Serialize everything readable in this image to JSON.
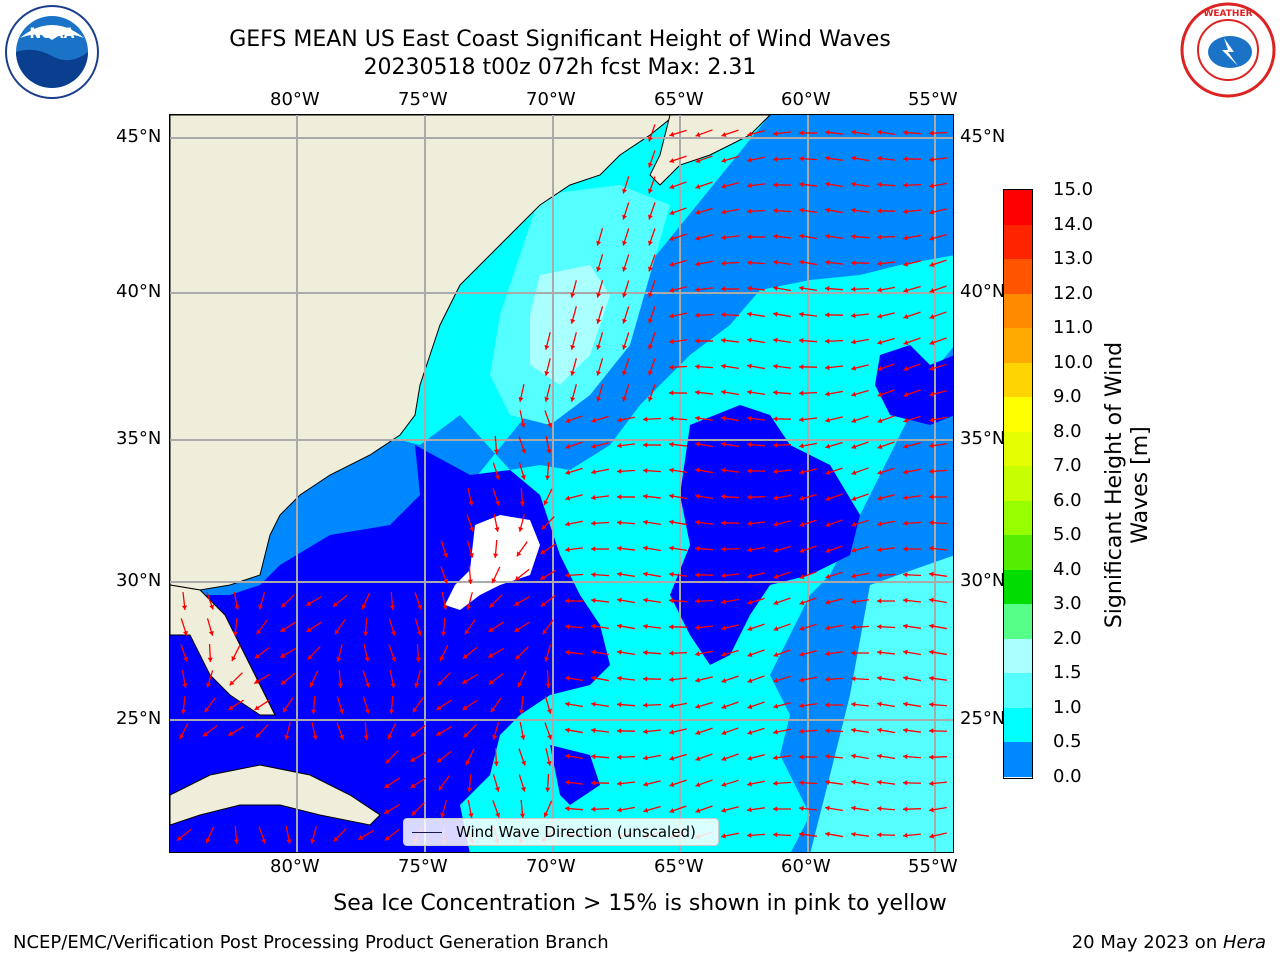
{
  "header": {
    "title_line1": "GEFS MEAN US East Coast Significant Height of Wind Waves",
    "title_line2": "20230518 t00z 072h fcst   Max: 2.31"
  },
  "logos": {
    "left": "noaa-logo",
    "left_text": "NOAA",
    "right": "national-weather-service-logo",
    "right_text": "NATIONAL WEATHER SERVICE"
  },
  "map": {
    "lon_labels": [
      "80°W",
      "75°W",
      "70°W",
      "65°W",
      "60°W",
      "55°W"
    ],
    "lat_labels": [
      "45°N",
      "40°N",
      "35°N",
      "30°N",
      "25°N"
    ],
    "legend_label": "Wind Wave Direction (unscaled)",
    "colors": {
      "land": "#efeedb",
      "gridline": "#aaaaaa",
      "arrow": "#ff0000"
    }
  },
  "colorbar": {
    "label": "Significant Height of Wind Waves [m]",
    "label_line1": "Significant Height of Wind",
    "label_line2": "Waves [m]",
    "ticks": [
      "15.0",
      "14.0",
      "13.0",
      "12.0",
      "11.0",
      "10.0",
      "9.0",
      "8.0",
      "7.0",
      "6.0",
      "5.0",
      "4.0",
      "3.0",
      "2.0",
      "1.5",
      "1.0",
      "0.5",
      "0.0"
    ],
    "colors": [
      "#ff0000",
      "#ff2400",
      "#ff5500",
      "#ff8a00",
      "#ffaa00",
      "#ffd400",
      "#ffff00",
      "#e6ff00",
      "#c8ff00",
      "#96ff00",
      "#55ee00",
      "#00dd00",
      "#55ff88",
      "#aaffff",
      "#55ffff",
      "#00ffff",
      "#0088ff",
      "#0000ff"
    ]
  },
  "footer": {
    "note": "Sea Ice Concentration > 15% is shown in pink to yellow",
    "credit": "NCEP/EMC/Verification Post Processing Product Generation Branch",
    "date": "20 May 2023 on ",
    "machine": "Hera"
  }
}
